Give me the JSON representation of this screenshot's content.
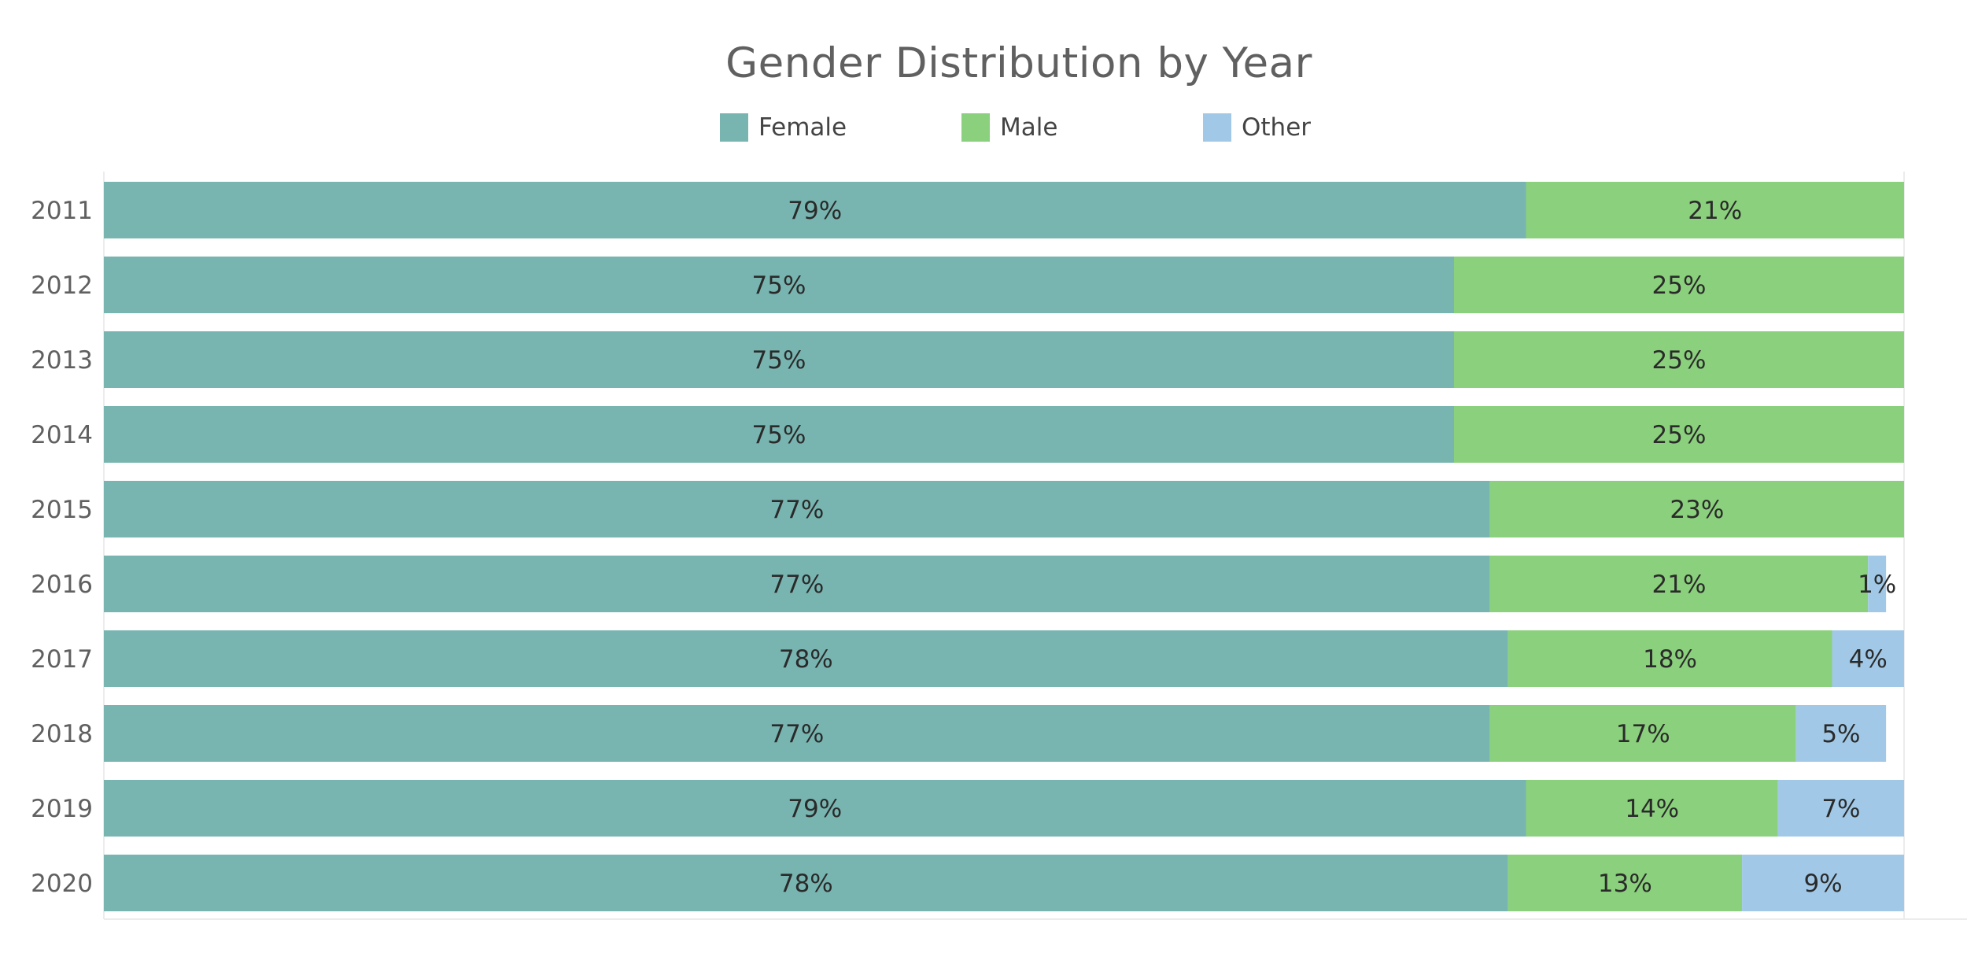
{
  "chart_data": {
    "type": "bar",
    "orientation": "horizontal",
    "stacked": true,
    "normalized": true,
    "title": "Gender Distribution by Year",
    "xlabel": "",
    "ylabel": "",
    "legend_position": "top-center",
    "grid": false,
    "categories": [
      "2011",
      "2012",
      "2013",
      "2014",
      "2015",
      "2016",
      "2017",
      "2018",
      "2019",
      "2020"
    ],
    "series": [
      {
        "name": "Female",
        "color": "#78b5b1",
        "values": [
          79,
          75,
          75,
          75,
          77,
          77,
          78,
          77,
          79,
          78
        ],
        "labels": [
          "79%",
          "75%",
          "75%",
          "75%",
          "77%",
          "77%",
          "78%",
          "77%",
          "79%",
          "78%"
        ]
      },
      {
        "name": "Male",
        "color": "#8bd07d",
        "values": [
          21,
          25,
          25,
          25,
          23,
          21,
          18,
          17,
          14,
          13
        ],
        "labels": [
          "21%",
          "25%",
          "25%",
          "25%",
          "23%",
          "21%",
          "18%",
          "17%",
          "14%",
          "13%"
        ]
      },
      {
        "name": "Other",
        "color": "#a1c9e7",
        "values": [
          0,
          0,
          0,
          0,
          0.3,
          1,
          4,
          5,
          7,
          9
        ],
        "labels": [
          "",
          "",
          "",
          "",
          "",
          "1%",
          "4%",
          "5%",
          "7%",
          "9%"
        ]
      }
    ]
  },
  "legend": {
    "items": [
      {
        "label": "Female",
        "color": "#78b5b1"
      },
      {
        "label": "Male",
        "color": "#8bd07d"
      },
      {
        "label": "Other",
        "color": "#a1c9e7"
      }
    ]
  }
}
